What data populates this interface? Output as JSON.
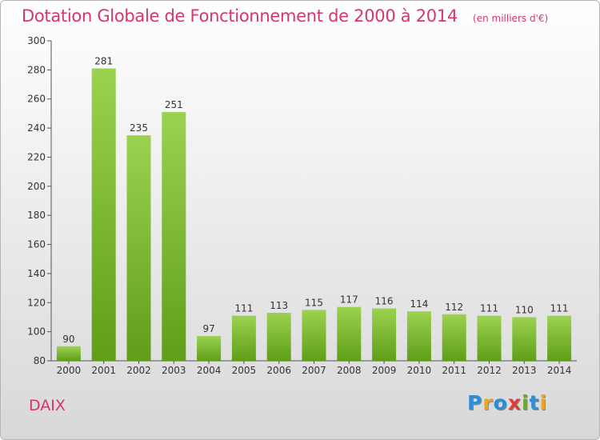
{
  "header": {
    "title": "Dotation Globale de Fonctionnement de 2000 à 2014",
    "unit": "(en milliers d'€)"
  },
  "footer": {
    "place": "DAIX",
    "logo_letters": [
      "P",
      "r",
      "o",
      "x",
      "i",
      "t",
      "i"
    ],
    "logo_colors": [
      "#2b8fd6",
      "#f2a31b",
      "#2b8fd6",
      "#e23b3b",
      "#6aaa2a",
      "#2b8fd6",
      "#f2a31b"
    ]
  },
  "chart_data": {
    "type": "bar",
    "title": "Dotation Globale de Fonctionnement de 2000 à 2014",
    "xlabel": "",
    "ylabel": "",
    "categories": [
      "2000",
      "2001",
      "2002",
      "2003",
      "2004",
      "2005",
      "2006",
      "2007",
      "2008",
      "2009",
      "2010",
      "2011",
      "2012",
      "2013",
      "2014"
    ],
    "values": [
      90,
      281,
      235,
      251,
      97,
      111,
      113,
      115,
      117,
      116,
      114,
      112,
      111,
      110,
      111
    ],
    "ylim": [
      80,
      300
    ],
    "yticks": [
      80,
      100,
      120,
      140,
      160,
      180,
      200,
      220,
      240,
      260,
      280,
      300
    ],
    "grid": false,
    "bar_color_top": "#9bd24f",
    "bar_color_bottom": "#5f9e18",
    "axis_color": "#555555"
  }
}
